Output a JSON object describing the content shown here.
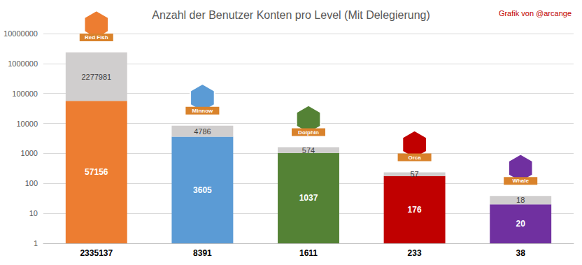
{
  "chart_data": {
    "type": "bar",
    "title": "Anzahl der Benutzer Konten pro Level (Mit Delegierung)",
    "annotations": [
      "Grafik von @arcange"
    ],
    "categories": [
      "2335137",
      "8391",
      "1611",
      "233",
      "38"
    ],
    "level_badges": [
      "Red Fish",
      "Minnow",
      "Dolphin",
      "Orca",
      "Whale"
    ],
    "series": [
      {
        "colors": [
          "#ED7D31",
          "#5B9BD5",
          "#548235",
          "#C00000",
          "#7030A0"
        ],
        "values": [
          57156,
          3605,
          1037,
          176,
          20
        ]
      },
      {
        "color": "#D0CECE",
        "values": [
          2277981,
          4786,
          574,
          57,
          18
        ]
      }
    ],
    "ylim": [
      1,
      10000000
    ],
    "yticks": [
      1,
      10,
      100,
      1000,
      10000,
      100000,
      1000000,
      10000000
    ],
    "log": "y",
    "grid": true,
    "stacked": true,
    "data_labels": true
  }
}
